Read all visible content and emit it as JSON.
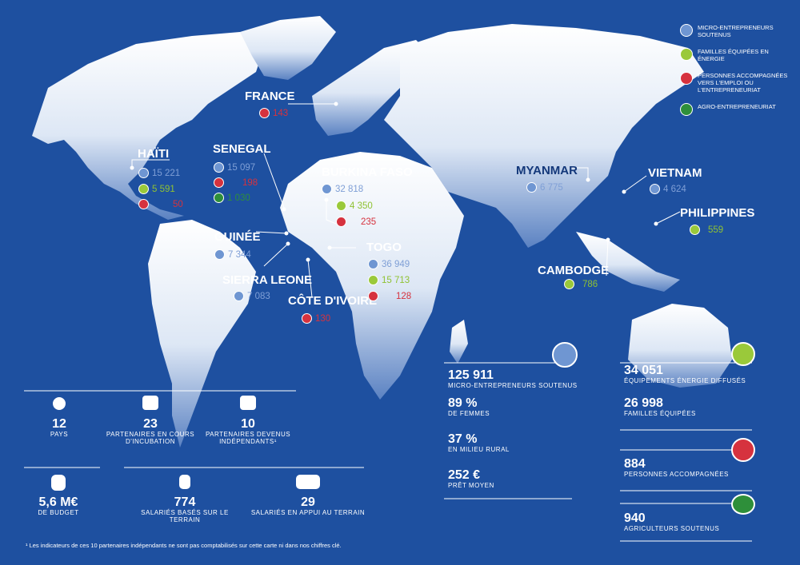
{
  "legend": {
    "micro": "Micro-entrepreneurs soutenus",
    "energy": "Familles équipées en énergie",
    "emploi": "Personnes accompagnées vers l'emploi ou l'entrepreneuriat",
    "agro": "Agro-entrepreneuriat"
  },
  "colors": {
    "micro": "#6f96d2",
    "energy": "#9ac93a",
    "emploi": "#d6323e",
    "agro": "#2e8f3a",
    "ocean": "#1e50a0"
  },
  "countries": {
    "france": {
      "name": "FRANCE",
      "emploi": "143"
    },
    "haiti": {
      "name": "HAÏTI",
      "micro": "15 221",
      "energy": "5 591",
      "emploi": "50"
    },
    "senegal": {
      "name": "SENEGAL",
      "micro": "15 097",
      "emploi": "198",
      "agro": "1 030"
    },
    "guinee": {
      "name": "GUINÉE",
      "micro": "7 344"
    },
    "sierra": {
      "name": "SIERRA LEONE",
      "micro": "7 083"
    },
    "cote": {
      "name": "CÔTE D'IVOIRE",
      "emploi": "130"
    },
    "burkina": {
      "name": "BURKINA FASO",
      "micro": "32 818",
      "energy": "4 350",
      "emploi": "235"
    },
    "togo": {
      "name": "TOGO",
      "micro": "36 949",
      "energy": "15 713",
      "emploi": "128"
    },
    "myanmar": {
      "name": "MYANMAR",
      "micro": "6 775"
    },
    "vietnam": {
      "name": "VIETNAM",
      "micro": "4 624"
    },
    "philippines": {
      "name": "PHILIPPINES",
      "energy": "559"
    },
    "cambodge": {
      "name": "CAMBODGE",
      "energy": "786"
    }
  },
  "stats_left": {
    "pays_num": "12",
    "pays_cap": "PAYS",
    "incub_num": "23",
    "incub_cap1": "PARTENAIRES EN COURS",
    "incub_cap2": "D'INCUBATION",
    "indep_num": "10",
    "indep_cap1": "PARTENAIRES DEVENUS",
    "indep_cap2": "INDÉPENDANTS¹",
    "budget_num": "5,6 M€",
    "budget_cap": "DE BUDGET",
    "terrain_num": "774",
    "terrain_cap": "SALARIÉS BASÉS SUR LE TERRAIN",
    "appui_num": "29",
    "appui_cap": "SALARIÉS EN APPUI AU TERRAIN"
  },
  "stats_mid": {
    "micro_num": "125 911",
    "micro_cap": "MICRO-ENTREPRENEURS SOUTENUS",
    "femmes_num": "89 %",
    "femmes_cap": "DE FEMMES",
    "rural_num": "37 %",
    "rural_cap": "EN MILIEU RURAL",
    "pret_num": "252 €",
    "pret_cap": "PRÊT MOYEN"
  },
  "stats_right": {
    "equip_num": "34 051",
    "equip_cap": "ÉQUIPEMENTS ÉNERGIE DIFFUSÉS",
    "fam_num": "26 998",
    "fam_cap": "FAMILLES ÉQUIPÉES",
    "pers_num": "884",
    "pers_cap": "PERSONNES ACCOMPAGNÉES",
    "agri_num": "940",
    "agri_cap": "AGRICULTEURS SOUTENUS"
  },
  "footnote": "¹ Les indicateurs de ces 10 partenaires indépendants ne sont pas comptabilisés sur cette carte ni dans nos chiffres clé."
}
